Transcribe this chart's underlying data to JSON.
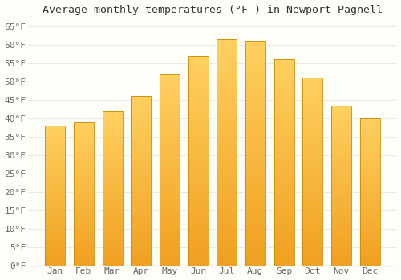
{
  "title": "Average monthly temperatures (°F ) in Newport Pagnell",
  "months": [
    "Jan",
    "Feb",
    "Mar",
    "Apr",
    "May",
    "Jun",
    "Jul",
    "Aug",
    "Sep",
    "Oct",
    "Nov",
    "Dec"
  ],
  "values": [
    38.0,
    39.0,
    42.0,
    46.0,
    52.0,
    57.0,
    61.5,
    61.0,
    56.0,
    51.0,
    43.5,
    40.0
  ],
  "bar_color_bottom": "#F0A020",
  "bar_color_top": "#FFD060",
  "bar_color_right": "#E89010",
  "bar_edge_color": "#CC8800",
  "ylim": [
    0,
    67
  ],
  "yticks": [
    0,
    5,
    10,
    15,
    20,
    25,
    30,
    35,
    40,
    45,
    50,
    55,
    60,
    65
  ],
  "ytick_labels": [
    "0°F",
    "5°F",
    "10°F",
    "15°F",
    "20°F",
    "25°F",
    "30°F",
    "35°F",
    "40°F",
    "45°F",
    "50°F",
    "55°F",
    "60°F",
    "65°F"
  ],
  "background_color": "#FEFEF8",
  "plot_bg_color": "#FEFEF8",
  "grid_color": "#E0E0E0",
  "title_fontsize": 9.5,
  "tick_fontsize": 8,
  "bar_width": 0.7,
  "n_grad": 80
}
